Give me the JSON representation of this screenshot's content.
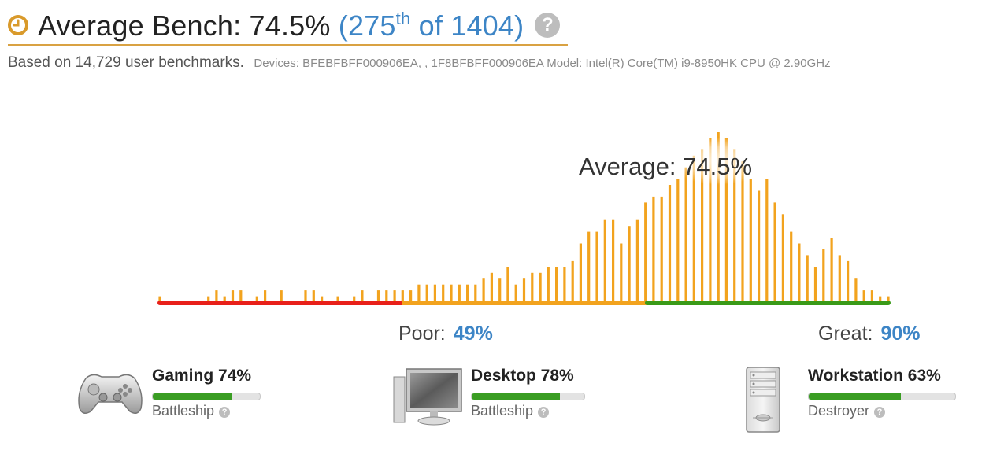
{
  "header": {
    "title": "Average Bench: 74.5%",
    "rank_open": "(275",
    "rank_sup": "th",
    "rank_close": " of 1404)",
    "help": "?"
  },
  "subline": {
    "based": "Based on 14,729 user benchmarks.",
    "devices": "Devices: BFEBFBFF000906EA, , 1F8BFBFF000906EA Model: Intel(R) Core(TM) i9-8950HK CPU @ 2.90GHz"
  },
  "chart_data": {
    "type": "bar",
    "annotation": "Average: 74.5%",
    "bands": [
      {
        "name": "poor",
        "color": "#e8201a"
      },
      {
        "name": "average",
        "color": "#f2a31e"
      },
      {
        "name": "great",
        "color": "#3a9a18"
      }
    ],
    "bar_color": "#f2a31e",
    "values": [
      1,
      0,
      0,
      0,
      0,
      0,
      1,
      2,
      1,
      2,
      2,
      0,
      1,
      2,
      0,
      2,
      0,
      0,
      2,
      2,
      1,
      0,
      1,
      0,
      1,
      2,
      0,
      2,
      2,
      2,
      2,
      2,
      3,
      3,
      3,
      3,
      3,
      3,
      3,
      3,
      4,
      5,
      4,
      6,
      3,
      4,
      5,
      5,
      6,
      6,
      6,
      7,
      10,
      12,
      12,
      14,
      14,
      10,
      13,
      14,
      17,
      18,
      18,
      20,
      21,
      23,
      25,
      26,
      28,
      29,
      28,
      26,
      24,
      21,
      19,
      21,
      17,
      15,
      12,
      10,
      8,
      6,
      9,
      11,
      8,
      7,
      4,
      2,
      2,
      1,
      1
    ]
  },
  "scale": {
    "poor_label": "Poor:",
    "poor_value": "49%",
    "great_label": "Great:",
    "great_value": "90%"
  },
  "categories": [
    {
      "title": "Gaming 74%",
      "value": 74,
      "sub": "Battleship",
      "icon": "gamepad-icon"
    },
    {
      "title": "Desktop 78%",
      "value": 78,
      "sub": "Battleship",
      "icon": "monitor-icon"
    },
    {
      "title": "Workstation 63%",
      "value": 63,
      "sub": "Destroyer",
      "icon": "tower-icon"
    }
  ]
}
